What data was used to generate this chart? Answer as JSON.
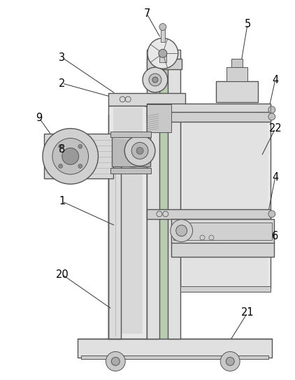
{
  "bg_color": "#ffffff",
  "lc": "#555555",
  "lc2": "#333333",
  "figsize": [
    4.22,
    5.43
  ],
  "dpi": 100
}
